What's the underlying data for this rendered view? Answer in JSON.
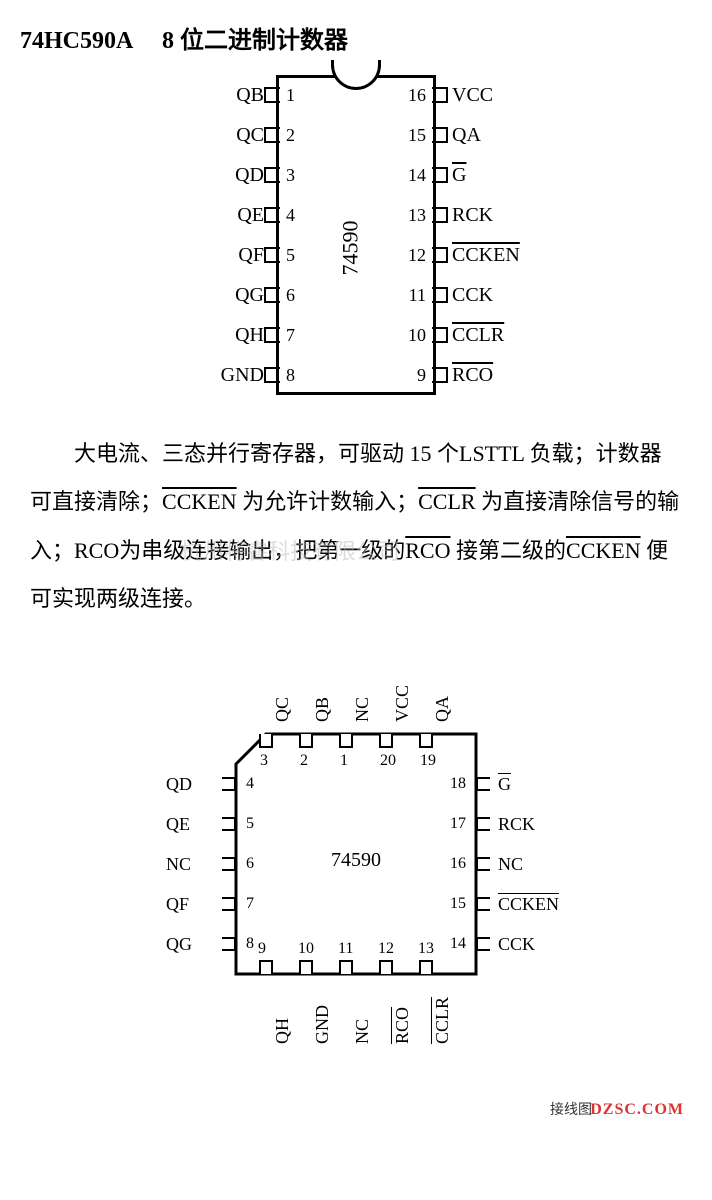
{
  "title": "74HC590A 　8 位二进制计数器",
  "dip": {
    "chipname": "74590",
    "left": [
      {
        "num": "1",
        "label": "QB",
        "ov": false
      },
      {
        "num": "2",
        "label": "QC",
        "ov": false
      },
      {
        "num": "3",
        "label": "QD",
        "ov": false
      },
      {
        "num": "4",
        "label": "QE",
        "ov": false
      },
      {
        "num": "5",
        "label": "QF",
        "ov": false
      },
      {
        "num": "6",
        "label": "QG",
        "ov": false
      },
      {
        "num": "7",
        "label": "QH",
        "ov": false
      },
      {
        "num": "8",
        "label": "GND",
        "ov": false
      }
    ],
    "right": [
      {
        "num": "16",
        "label": "VCC",
        "ov": false
      },
      {
        "num": "15",
        "label": "QA",
        "ov": false
      },
      {
        "num": "14",
        "label": "G",
        "ov": true
      },
      {
        "num": "13",
        "label": "RCK",
        "ov": false
      },
      {
        "num": "12",
        "label": "CCKEN",
        "ov": true
      },
      {
        "num": "11",
        "label": "CCK",
        "ov": false
      },
      {
        "num": "10",
        "label": "CCLR",
        "ov": true
      },
      {
        "num": "9",
        "label": "RCO",
        "ov": true
      }
    ]
  },
  "body_plain_prefix": "大电流、三态并行寄存器，可驱动 15 个LSTTL 负载；计数器可直接清除；",
  "body_seg2": " 为允许计数输入；",
  "body_seg3": " 为直接清除信号的输入；RCO为串级连接输出，把第一级的",
  "body_seg4": " 接第二级的",
  "body_seg5": " 便可实现两级连接。",
  "body_ov1": "CCKEN",
  "body_ov2": "CCLR",
  "body_ov3": "RCO",
  "body_ov4": "差CCKEN",
  "body_ov4b": "CCKEN",
  "watermark": "杭州将睿科技有限公司",
  "plcc": {
    "chipname": "74590",
    "top": [
      {
        "num": "3",
        "label": "QC",
        "ov": false
      },
      {
        "num": "2",
        "label": "QB",
        "ov": false
      },
      {
        "num": "1",
        "label": "NC",
        "ov": false
      },
      {
        "num": "20",
        "label": "VCC",
        "ov": false
      },
      {
        "num": "19",
        "label": "QA",
        "ov": false
      }
    ],
    "left": [
      {
        "num": "4",
        "label": "QD",
        "ov": false
      },
      {
        "num": "5",
        "label": "QE",
        "ov": false
      },
      {
        "num": "6",
        "label": "NC",
        "ov": false
      },
      {
        "num": "7",
        "label": "QF",
        "ov": false
      },
      {
        "num": "8",
        "label": "QG",
        "ov": false
      }
    ],
    "right": [
      {
        "num": "18",
        "label": "G",
        "ov": true
      },
      {
        "num": "17",
        "label": "RCK",
        "ov": false
      },
      {
        "num": "16",
        "label": "NC",
        "ov": false
      },
      {
        "num": "15",
        "label": "CCKEN",
        "ov": true
      },
      {
        "num": "14",
        "label": "CCK",
        "ov": false
      }
    ],
    "bottom": [
      {
        "num": "9",
        "label": "QH",
        "ov": false
      },
      {
        "num": "10",
        "label": "GND",
        "ov": false
      },
      {
        "num": "11",
        "label": "NC",
        "ov": false
      },
      {
        "num": "12",
        "label": "RCO",
        "ov": true
      },
      {
        "num": "13",
        "label": "CCLR",
        "ov": true
      }
    ]
  },
  "footer_left": "接线图",
  "footer_right": "DZSC.COM"
}
